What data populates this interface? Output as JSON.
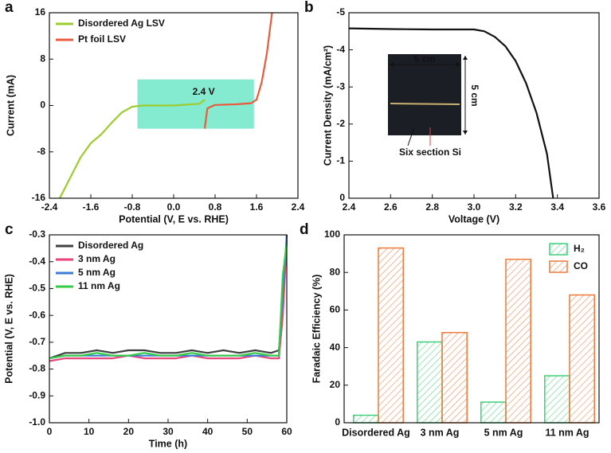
{
  "chart_data": [
    {
      "type": "line",
      "panel": "a",
      "xlabel": "Potential (V, E vs. RHE)",
      "ylabel": "Current (mA)",
      "xlim": [
        -2.4,
        2.4
      ],
      "xticks": [
        -2.4,
        -1.6,
        -0.8,
        {
          "value": 0,
          "label": "0.0"
        },
        0.8,
        1.6,
        2.4
      ],
      "ylim": [
        -16,
        16
      ],
      "yticks": [
        -16,
        -8,
        0,
        8,
        16
      ],
      "legend": "upper left",
      "highlight": {
        "xlim": [
          -0.7,
          1.55
        ],
        "ylim": [
          -4,
          4.5
        ],
        "color": "#6ee6c8"
      },
      "annotation": "2.4 V",
      "series": [
        {
          "name": "Disordered Ag LSV",
          "color": "#9ccc2e",
          "x": [
            -2.2,
            -2.0,
            -1.8,
            -1.6,
            -1.4,
            -1.2,
            -1.0,
            -0.8,
            -0.6,
            0.0,
            0.5,
            0.6
          ],
          "values": [
            -16,
            -12.5,
            -9,
            -6.5,
            -5,
            -3,
            -1.2,
            -0.2,
            0,
            0,
            0.3,
            1
          ]
        },
        {
          "name": "Pt foil LSV",
          "color": "#ea5a3c",
          "x": [
            0.6,
            0.65,
            0.8,
            1.2,
            1.5,
            1.6,
            1.7,
            1.8,
            1.9
          ],
          "values": [
            -4,
            -0.5,
            0.1,
            0.2,
            0.4,
            1,
            4,
            9,
            16
          ]
        }
      ]
    },
    {
      "type": "line",
      "panel": "b",
      "xlabel": "Voltage (V)",
      "ylabel": "Current Density (mA/cm²)",
      "xlim": [
        2.4,
        3.6
      ],
      "xticks": [
        2.4,
        2.6,
        2.8,
        {
          "value": 3,
          "label": "3.0"
        },
        3.2,
        3.4,
        3.6
      ],
      "ylim": [
        0,
        -5
      ],
      "yticks": [
        0,
        -1,
        -2,
        -3,
        -4,
        -5
      ],
      "color": "#111111",
      "x": [
        2.4,
        2.6,
        2.8,
        3.0,
        3.05,
        3.1,
        3.15,
        3.2,
        3.25,
        3.3,
        3.35,
        3.38
      ],
      "values": [
        -4.58,
        -4.56,
        -4.55,
        -4.55,
        -4.5,
        -4.35,
        -4.1,
        -3.7,
        -3.1,
        -2.3,
        -1.2,
        0
      ],
      "inset_labels": [
        "5 cm",
        "5 cm",
        "Six section Si"
      ]
    },
    {
      "type": "line",
      "panel": "c",
      "xlabel": "Time (h)",
      "ylabel": "Potential (V, E vs. RHE)",
      "xlim": [
        0,
        60
      ],
      "xticks": [
        0,
        10,
        20,
        30,
        40,
        50,
        60
      ],
      "ylim": [
        -1,
        -0.3
      ],
      "yticks": [
        {
          "value": -1,
          "label": "-1.0"
        },
        -0.9,
        -0.8,
        -0.7,
        -0.6,
        -0.5,
        -0.4,
        -0.3
      ],
      "legend": "upper left",
      "x": [
        0,
        4,
        8,
        12,
        16,
        20,
        24,
        28,
        32,
        36,
        40,
        44,
        48,
        52,
        56,
        58,
        59,
        60
      ],
      "series": [
        {
          "name": "Disordered Ag",
          "color": "#404040",
          "values": [
            -0.76,
            -0.74,
            -0.74,
            -0.73,
            -0.74,
            -0.73,
            -0.73,
            -0.74,
            -0.74,
            -0.73,
            -0.74,
            -0.73,
            -0.74,
            -0.73,
            -0.74,
            -0.73,
            -0.55,
            -0.3
          ]
        },
        {
          "name": "3 nm Ag",
          "color": "#e8447a",
          "values": [
            -0.77,
            -0.76,
            -0.76,
            -0.76,
            -0.76,
            -0.75,
            -0.76,
            -0.76,
            -0.76,
            -0.75,
            -0.76,
            -0.76,
            -0.76,
            -0.75,
            -0.76,
            -0.76,
            -0.6,
            -0.32
          ]
        },
        {
          "name": "5 nm Ag",
          "color": "#3a7fd5",
          "values": [
            -0.76,
            -0.75,
            -0.75,
            -0.75,
            -0.75,
            -0.75,
            -0.75,
            -0.75,
            -0.75,
            -0.75,
            -0.75,
            -0.75,
            -0.75,
            -0.75,
            -0.75,
            -0.75,
            -0.5,
            -0.31
          ]
        },
        {
          "name": "11 nm Ag",
          "color": "#33cc44",
          "values": [
            -0.76,
            -0.75,
            -0.75,
            -0.74,
            -0.75,
            -0.75,
            -0.74,
            -0.75,
            -0.75,
            -0.74,
            -0.75,
            -0.75,
            -0.75,
            -0.74,
            -0.75,
            -0.75,
            -0.45,
            -0.33
          ]
        }
      ]
    },
    {
      "type": "bar",
      "panel": "d",
      "ylabel": "Faradaic Efficiency (%)",
      "categories": [
        "Disordered Ag",
        "3 nm Ag",
        "5 nm Ag",
        "11 nm Ag"
      ],
      "ylim": [
        0,
        100
      ],
      "yticks": [
        0,
        20,
        40,
        60,
        80,
        100
      ],
      "legend": "upper right",
      "series": [
        {
          "name": "H₂",
          "color": "#3fcf7a",
          "values": [
            4,
            43,
            11,
            25
          ]
        },
        {
          "name": "CO",
          "color": "#ec7a3a",
          "values": [
            93,
            48,
            87,
            68
          ]
        }
      ]
    }
  ]
}
